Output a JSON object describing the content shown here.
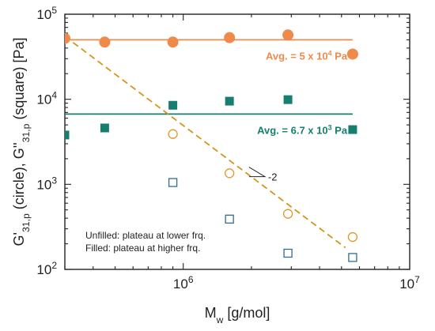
{
  "chart_data": {
    "type": "scatter",
    "x_scale": "log",
    "y_scale": "log",
    "xlim": [
      300000,
      10000000
    ],
    "ylim": [
      100,
      100000
    ],
    "xlabel": "M",
    "xlabel_sub": "w",
    "xlabel_units": " [g/mol]",
    "ylabel_parts": [
      {
        "t": "G'"
      },
      {
        "t": "31,p",
        "sub": true
      },
      {
        "t": " (circle), G''"
      },
      {
        "t": "31,p",
        "sub": true
      },
      {
        "t": " (square) [Pa]"
      }
    ],
    "x_ticks": [
      {
        "value": 1000000,
        "base": "10",
        "exp": "6"
      },
      {
        "value": 10000000,
        "base": "10",
        "exp": "7"
      }
    ],
    "y_ticks": [
      {
        "value": 100,
        "base": "10",
        "exp": "2"
      },
      {
        "value": 1000,
        "base": "10",
        "exp": "3"
      },
      {
        "value": 10000,
        "base": "10",
        "exp": "4"
      },
      {
        "value": 100000,
        "base": "10",
        "exp": "5"
      }
    ],
    "colors": {
      "orange": "#f08a4b",
      "teal": "#167f70",
      "open_orange": "#e3962a",
      "open_blue": "#2e6e8e",
      "dashed": "#d6941c"
    },
    "series": [
      {
        "marker": "circle",
        "filled": true,
        "color_key": "orange",
        "points": [
          [
            300000,
            52000
          ],
          [
            450000,
            47000
          ],
          [
            900000,
            47000
          ],
          [
            1600000,
            53000
          ],
          [
            2900000,
            57000
          ],
          [
            5600000,
            34000
          ]
        ]
      },
      {
        "marker": "square",
        "filled": true,
        "color_key": "teal",
        "points": [
          [
            300000,
            3800
          ],
          [
            450000,
            4600
          ],
          [
            900000,
            8500
          ],
          [
            1600000,
            9500
          ],
          [
            2900000,
            9900
          ],
          [
            5600000,
            4400
          ]
        ]
      },
      {
        "marker": "circle",
        "filled": false,
        "color_key": "open_orange",
        "points": [
          [
            900000,
            3900
          ],
          [
            1600000,
            1350
          ],
          [
            2900000,
            450
          ],
          [
            5600000,
            240
          ]
        ]
      },
      {
        "marker": "square",
        "filled": false,
        "color_key": "open_blue",
        "points": [
          [
            900000,
            1050
          ],
          [
            1600000,
            390
          ],
          [
            2900000,
            155
          ],
          [
            5600000,
            138
          ]
        ]
      }
    ],
    "hlines": [
      {
        "y": 50000,
        "color_key": "orange",
        "x_from": 300000,
        "x_to": 5600000,
        "label_parts": [
          {
            "t": "Avg. = 5 x 10"
          },
          {
            "t": "4",
            "sup": true
          },
          {
            "t": " Pa"
          }
        ]
      },
      {
        "y": 6700,
        "color_key": "teal",
        "x_from": 300000,
        "x_to": 5600000,
        "label_parts": [
          {
            "t": "Avg. = 6.7 x 10"
          },
          {
            "t": "3",
            "sup": true
          },
          {
            "t": " Pa"
          }
        ]
      }
    ],
    "trend_line": {
      "style": "dashed",
      "color_key": "dashed",
      "points": [
        [
          300000,
          55000
        ],
        [
          5200000,
          180
        ]
      ]
    },
    "slope_label": "-2",
    "legend_text": [
      "Unfilled: plateau at lower frq.",
      "Filled: plateau at higher frq."
    ]
  }
}
